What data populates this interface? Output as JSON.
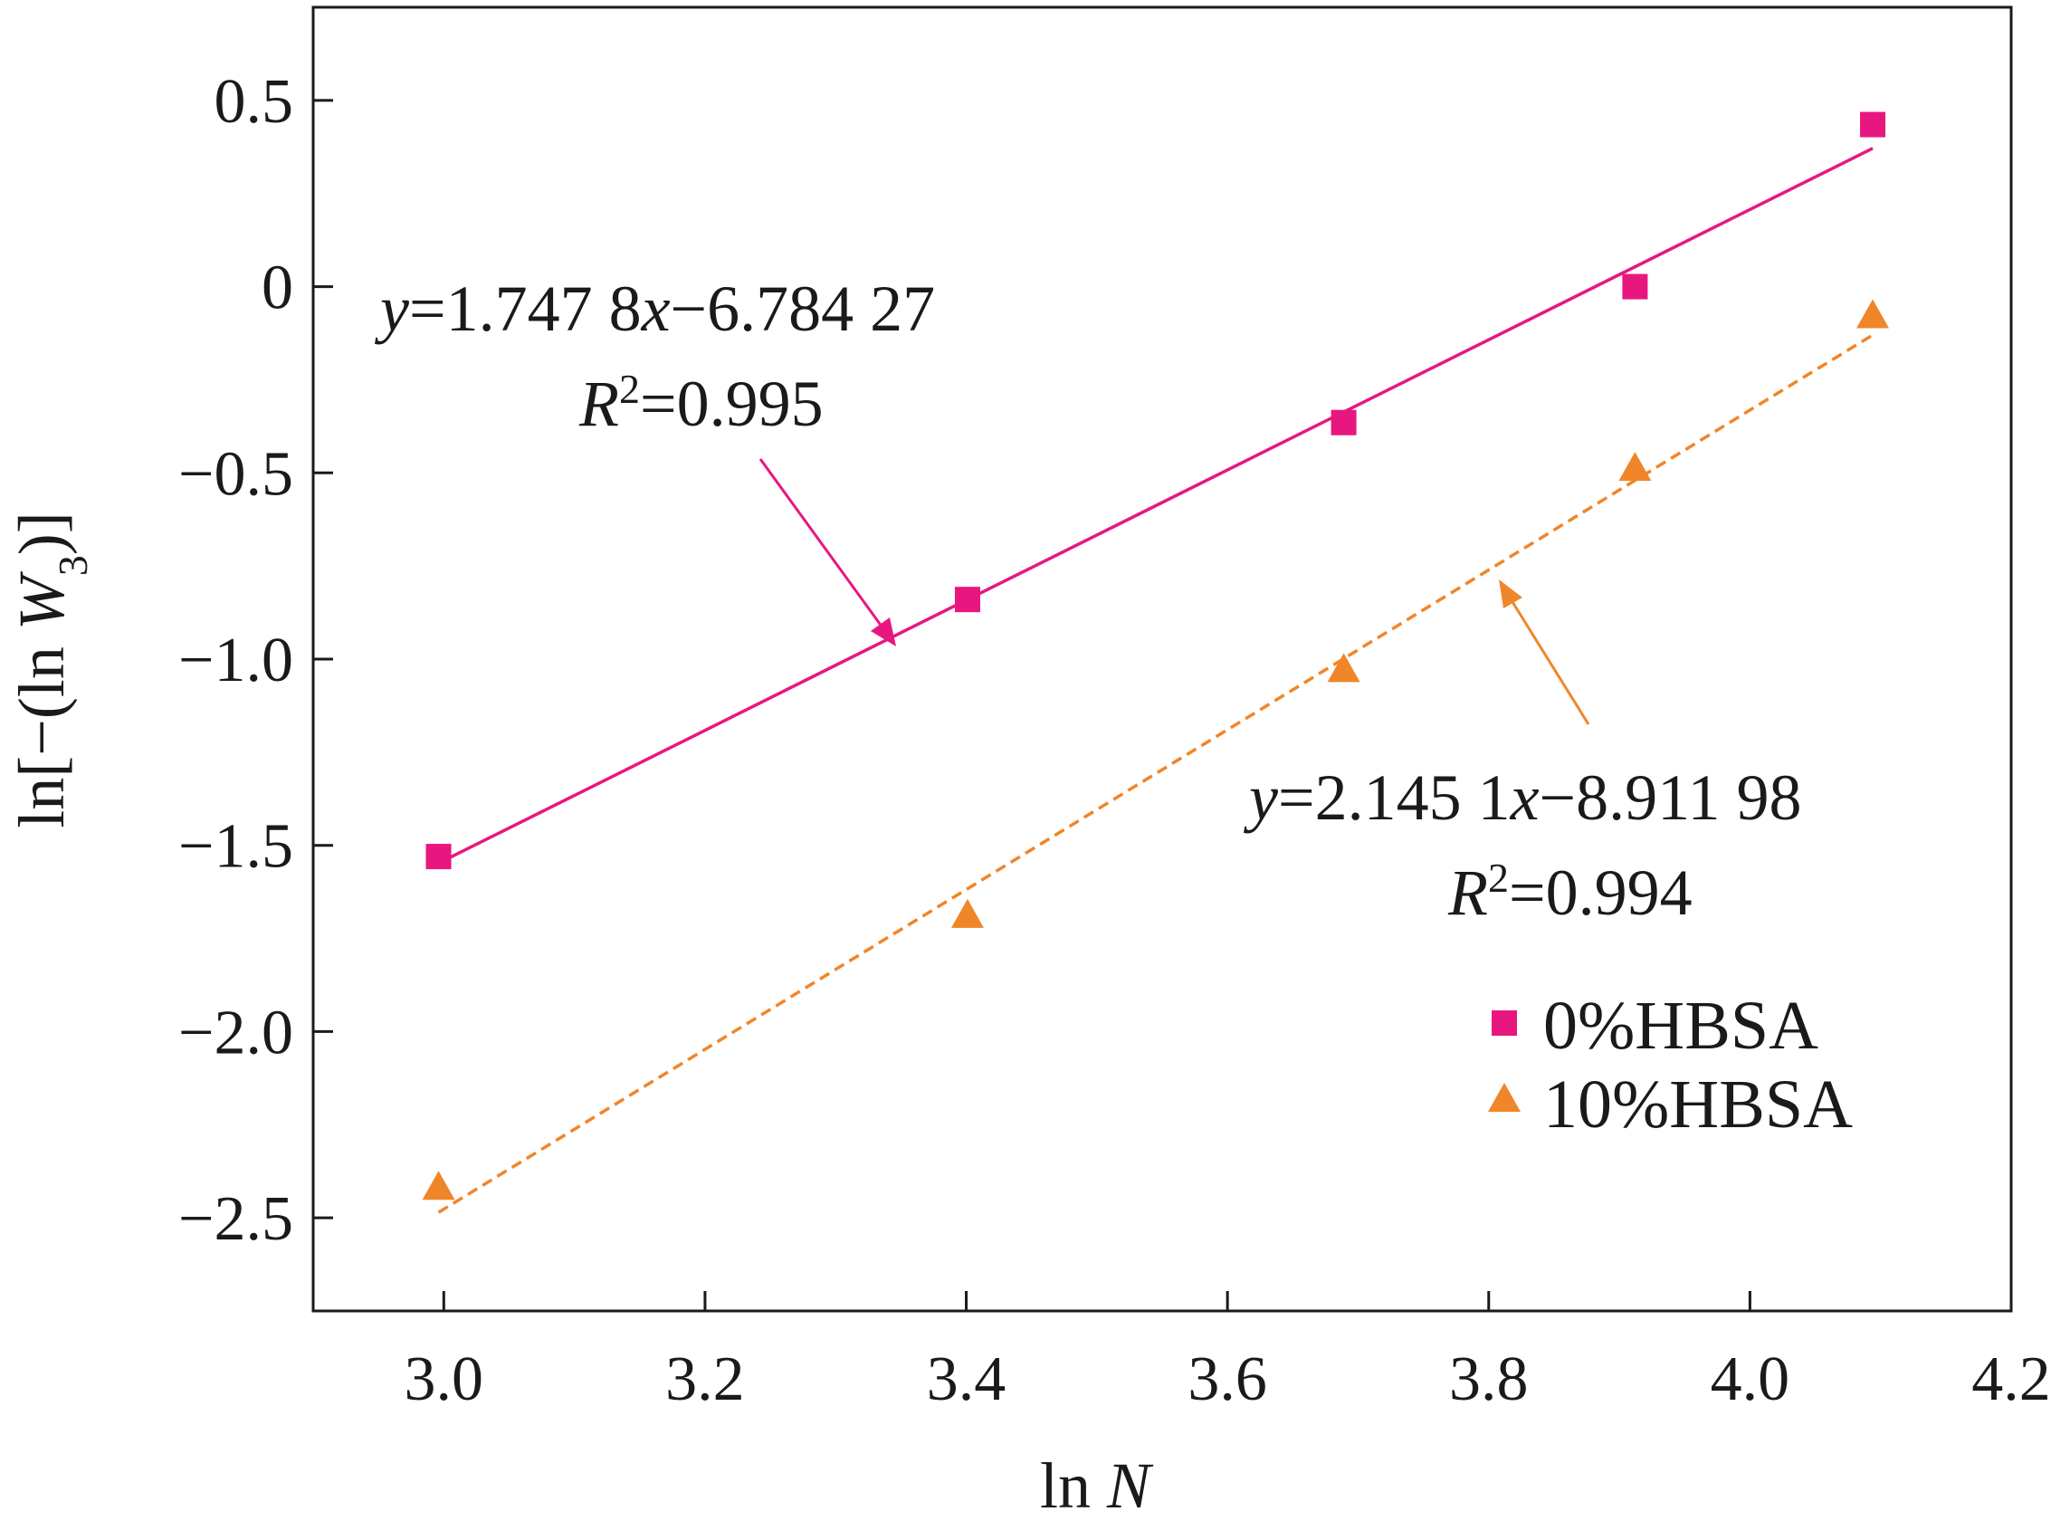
{
  "chart_data": {
    "type": "scatter",
    "xlabel": {
      "prefix": "ln ",
      "var": "N"
    },
    "ylabel": {
      "prefix": "ln[−(ln ",
      "var": "W",
      "sub": "3",
      "suffix": ")]"
    },
    "xlim": [
      2.9,
      4.2
    ],
    "ylim": [
      -2.75,
      0.75
    ],
    "xticks": [
      3.0,
      3.2,
      3.4,
      3.6,
      3.8,
      4.0,
      4.2
    ],
    "xtick_labels": [
      "3.0",
      "3.2",
      "3.4",
      "3.6",
      "3.8",
      "4.0",
      "4.2"
    ],
    "yticks": [
      0.5,
      0,
      -0.5,
      -1.0,
      -1.5,
      -2.0,
      -2.5
    ],
    "ytick_labels": [
      "0.5",
      "0",
      "−0.5",
      "−1.0",
      "−1.5",
      "−2.0",
      "−2.5"
    ],
    "grid": false,
    "legend_position": "bottom-right",
    "series": [
      {
        "name": "0%HBSA",
        "marker": "square",
        "color": "#e8177f",
        "x": [
          2.996,
          3.401,
          3.689,
          3.912,
          4.094
        ],
        "y": [
          -1.53,
          -0.84,
          -0.365,
          0.0,
          0.435
        ],
        "fit": {
          "slope": 1.7478,
          "intercept": -6.78427,
          "line_style": "solid",
          "x_range": [
            2.996,
            4.094
          ]
        },
        "equation": {
          "var": "y",
          "eq1": "=1.747 8",
          "xvar": "x",
          "eq2": "−6.784 27",
          "r2_var": "R",
          "r2_sup": "2",
          "r2_val": "=0.995"
        }
      },
      {
        "name": "10%HBSA",
        "marker": "triangle",
        "color": "#f0862a",
        "x": [
          2.996,
          3.401,
          3.689,
          3.912,
          4.094
        ],
        "y": [
          -2.42,
          -1.69,
          -1.03,
          -0.49,
          -0.08
        ],
        "fit": {
          "slope": 2.1451,
          "intercept": -8.91198,
          "line_style": "dashed",
          "x_range": [
            2.996,
            4.094
          ]
        },
        "equation": {
          "var": "y",
          "eq1": "=2.145 1",
          "xvar": "x",
          "eq2": "−8.911 98",
          "r2_var": "R",
          "r2_sup": "2",
          "r2_val": "=0.994"
        }
      }
    ]
  }
}
